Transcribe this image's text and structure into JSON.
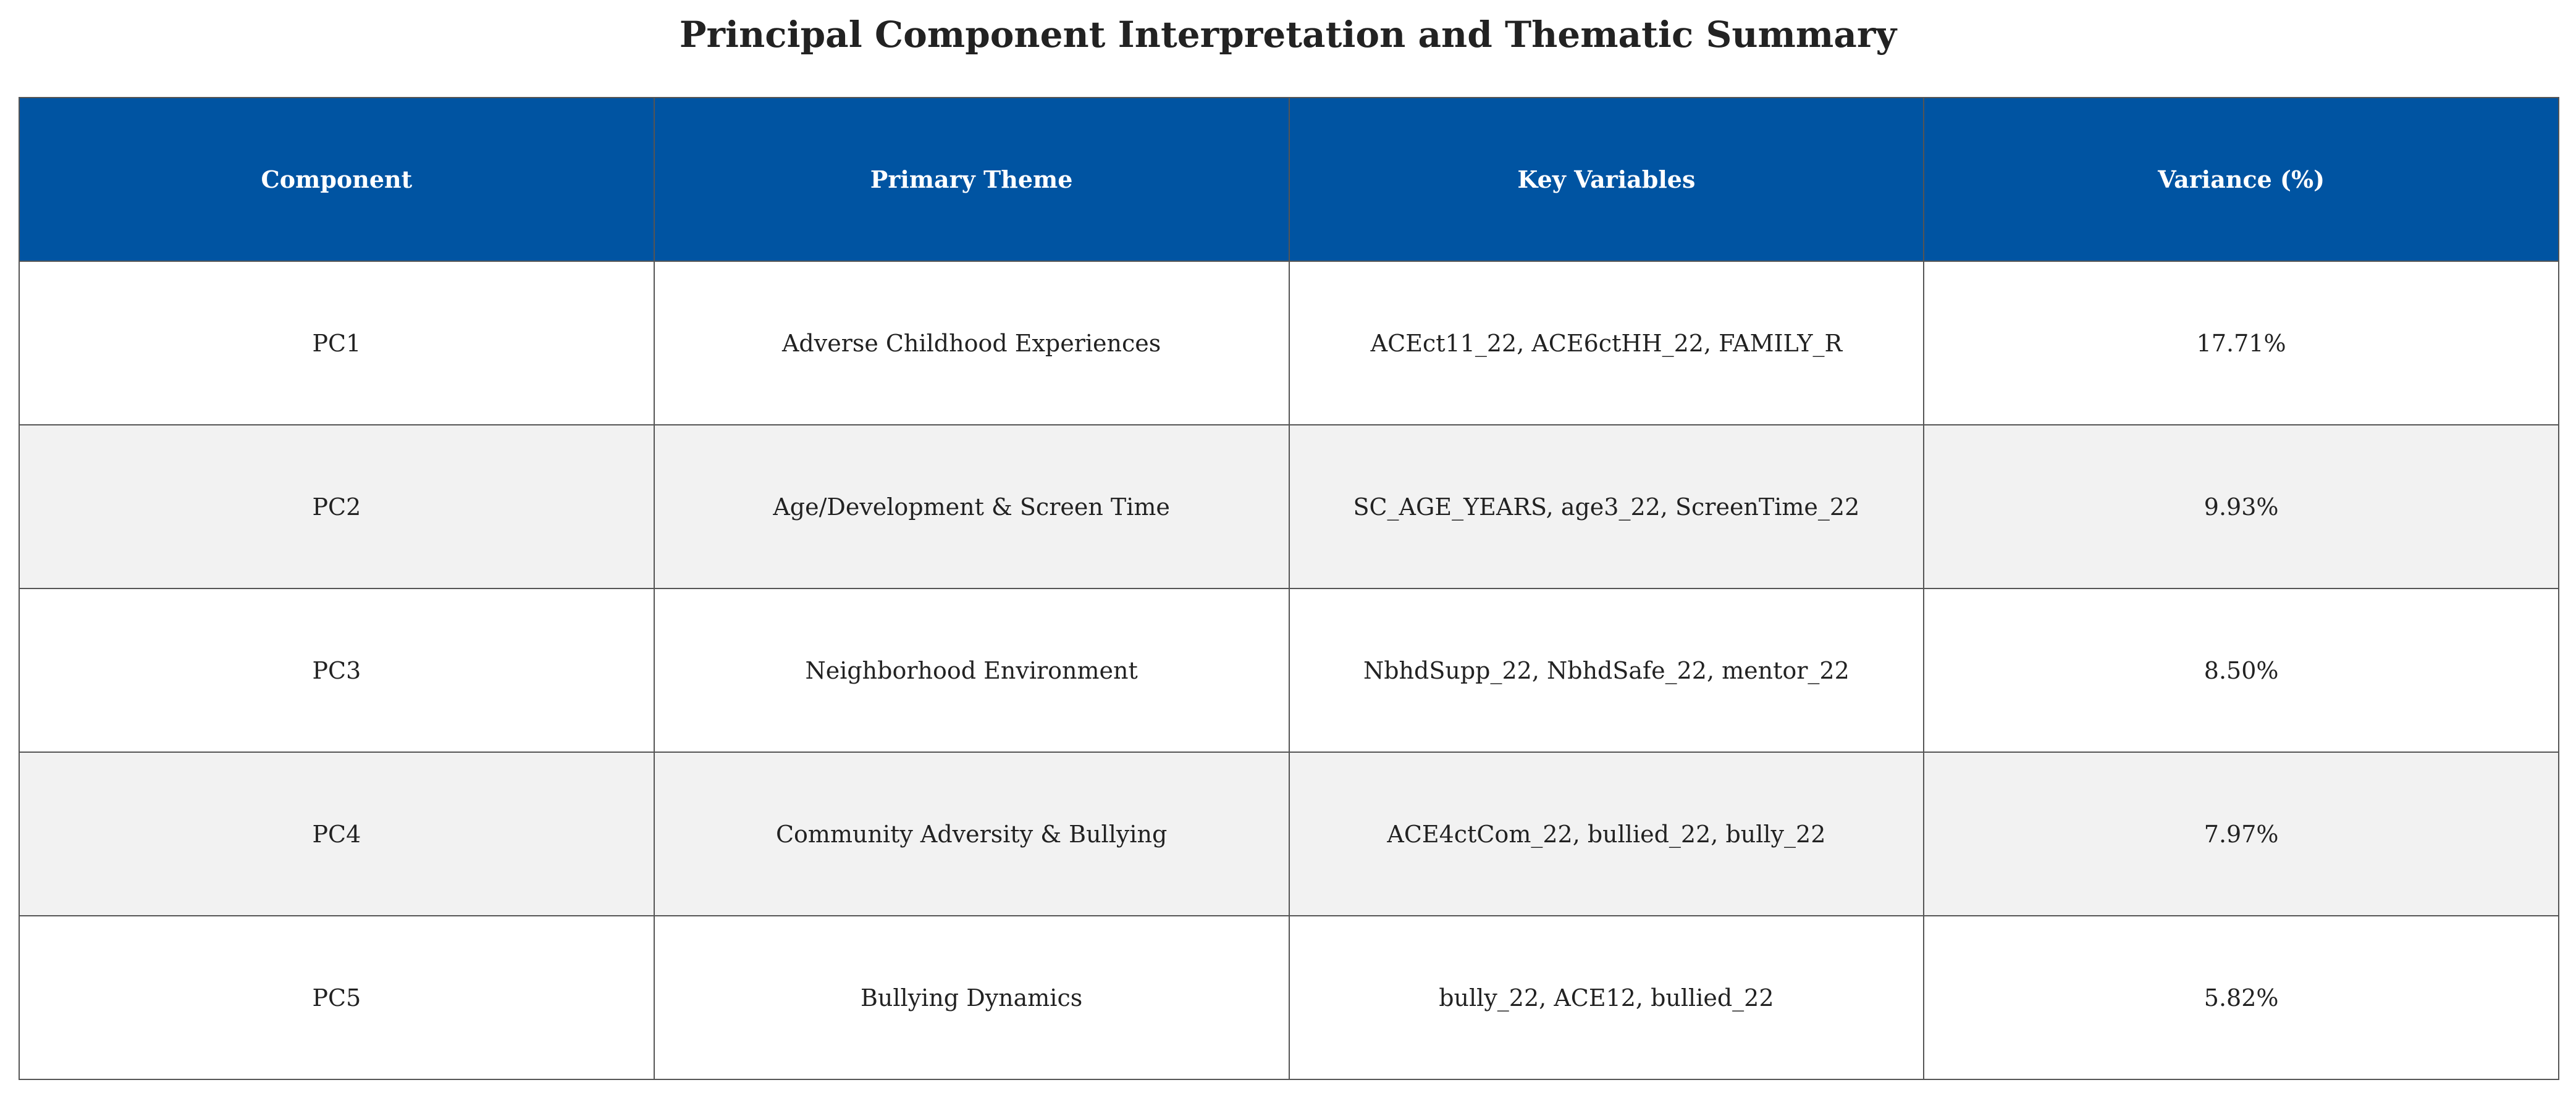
{
  "chart_data": {
    "type": "table",
    "title": "Principal Component Interpretation and Thematic Summary",
    "columns": [
      "Component",
      "Primary Theme",
      "Key Variables",
      "Variance (%)"
    ],
    "rows": [
      [
        "PC1",
        "Adverse Childhood Experiences",
        "ACEct11_22, ACE6ctHH_22, FAMILY_R",
        "17.71%"
      ],
      [
        "PC2",
        "Age/Development & Screen Time",
        "SC_AGE_YEARS, age3_22, ScreenTime_22",
        "9.93%"
      ],
      [
        "PC3",
        "Neighborhood Environment",
        "NbhdSupp_22, NbhdSafe_22, mentor_22",
        "8.50%"
      ],
      [
        "PC4",
        "Community Adversity & Bullying",
        "ACE4ctCom_22, bullied_22, bully_22",
        "7.97%"
      ],
      [
        "PC5",
        "Bullying Dynamics",
        "bully_22, ACE12, bullied_22",
        "5.82%"
      ]
    ],
    "colors": {
      "header_bg": "#0054a2",
      "header_text": "#ffffff",
      "row_alt_bg": "#f2f2f2",
      "border": "#555555"
    }
  }
}
